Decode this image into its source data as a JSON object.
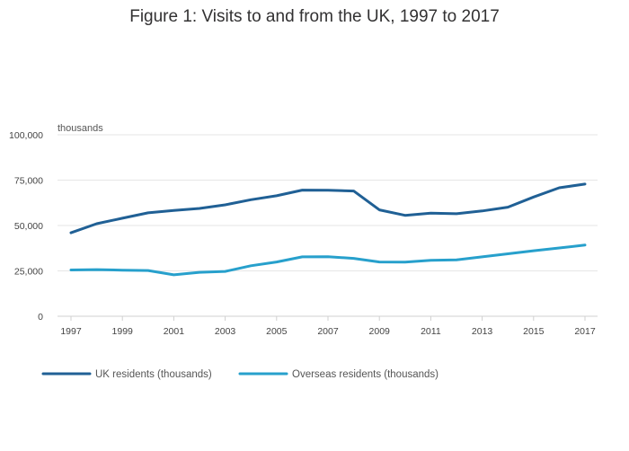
{
  "chart_data": {
    "type": "line",
    "title": "Figure 1: Visits to and from the UK, 1997 to 2017",
    "unit_label": "thousands",
    "xlabel": "",
    "ylabel": "",
    "x": [
      1997,
      1998,
      1999,
      2000,
      2001,
      2002,
      2003,
      2004,
      2005,
      2006,
      2007,
      2008,
      2009,
      2010,
      2011,
      2012,
      2013,
      2014,
      2015,
      2016,
      2017
    ],
    "x_ticks": [
      "1997",
      "1999",
      "2001",
      "2003",
      "2005",
      "2007",
      "2009",
      "2011",
      "2013",
      "2015",
      "2017"
    ],
    "ylim": [
      0,
      100000
    ],
    "y_ticks": [
      0,
      25000,
      50000,
      75000,
      100000
    ],
    "y_tick_labels": [
      "0",
      "25,000",
      "50,000",
      "75,000",
      "100,000"
    ],
    "grid": true,
    "legend_position": "bottom-left",
    "series": [
      {
        "name": "UK residents (thousands)",
        "color": "#206095",
        "values": [
          46000,
          51000,
          54000,
          57000,
          58300,
          59400,
          61400,
          64200,
          66400,
          69500,
          69400,
          69000,
          58600,
          55600,
          56800,
          56500,
          58000,
          60100,
          65700,
          70800,
          72800
        ]
      },
      {
        "name": "Overseas residents (thousands)",
        "color": "#27a0cc",
        "values": [
          25500,
          25700,
          25400,
          25200,
          22800,
          24200,
          24700,
          27800,
          29900,
          32700,
          32800,
          31900,
          29900,
          29800,
          30800,
          31100,
          32700,
          34400,
          36100,
          37600,
          39200
        ]
      }
    ]
  }
}
